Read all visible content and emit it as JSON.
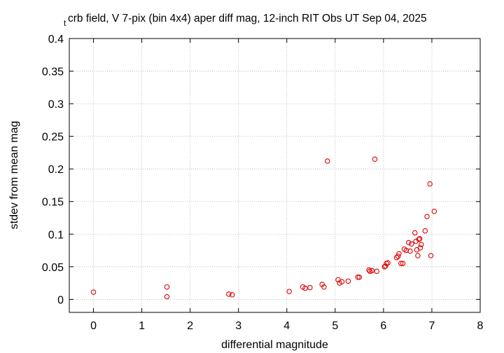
{
  "chart_data": {
    "type": "scatter",
    "title_prefix": "t",
    "title": "crb field, V 7-pix (bin 4x4) aper diff mag,  12-inch RIT Obs UT Sep 04, 2025",
    "xlabel": "differential magnitude",
    "ylabel": "stdev from mean mag",
    "xlim": [
      -0.5,
      8
    ],
    "ylim": [
      -0.02,
      0.4
    ],
    "xticks": [
      0,
      1,
      2,
      3,
      4,
      5,
      6,
      7,
      8
    ],
    "xtick_labels": [
      "0",
      "1",
      "2",
      "3",
      "4",
      "5",
      "6",
      "7",
      "8"
    ],
    "yticks": [
      0,
      0.05,
      0.1,
      0.15,
      0.2,
      0.25,
      0.3,
      0.35,
      0.4
    ],
    "ytick_labels": [
      "0",
      "0.05",
      "0.1",
      "0.15",
      "0.2",
      "0.25",
      "0.3",
      "0.35",
      "0.4"
    ],
    "grid": true,
    "marker_color": "#e00000",
    "points": [
      [
        0.0,
        0.011
      ],
      [
        1.52,
        0.019
      ],
      [
        1.52,
        0.004
      ],
      [
        2.8,
        0.008
      ],
      [
        2.87,
        0.007
      ],
      [
        4.05,
        0.012
      ],
      [
        4.33,
        0.019
      ],
      [
        4.38,
        0.017
      ],
      [
        4.48,
        0.018
      ],
      [
        4.73,
        0.023
      ],
      [
        4.77,
        0.019
      ],
      [
        4.84,
        0.212
      ],
      [
        5.06,
        0.03
      ],
      [
        5.09,
        0.025
      ],
      [
        5.14,
        0.027
      ],
      [
        5.27,
        0.028
      ],
      [
        5.47,
        0.034
      ],
      [
        5.5,
        0.034
      ],
      [
        5.7,
        0.045
      ],
      [
        5.72,
        0.043
      ],
      [
        5.76,
        0.044
      ],
      [
        5.82,
        0.215
      ],
      [
        5.86,
        0.043
      ],
      [
        6.02,
        0.05
      ],
      [
        6.04,
        0.051
      ],
      [
        6.06,
        0.055
      ],
      [
        6.09,
        0.056
      ],
      [
        6.27,
        0.064
      ],
      [
        6.3,
        0.066
      ],
      [
        6.32,
        0.07
      ],
      [
        6.36,
        0.055
      ],
      [
        6.4,
        0.055
      ],
      [
        6.43,
        0.077
      ],
      [
        6.47,
        0.075
      ],
      [
        6.52,
        0.087
      ],
      [
        6.55,
        0.074
      ],
      [
        6.58,
        0.085
      ],
      [
        6.65,
        0.102
      ],
      [
        6.67,
        0.089
      ],
      [
        6.69,
        0.076
      ],
      [
        6.71,
        0.067
      ],
      [
        6.73,
        0.092
      ],
      [
        6.75,
        0.093
      ],
      [
        6.76,
        0.079
      ],
      [
        6.78,
        0.084
      ],
      [
        6.86,
        0.105
      ],
      [
        6.9,
        0.127
      ],
      [
        6.96,
        0.177
      ],
      [
        6.98,
        0.067
      ],
      [
        7.05,
        0.135
      ]
    ]
  }
}
